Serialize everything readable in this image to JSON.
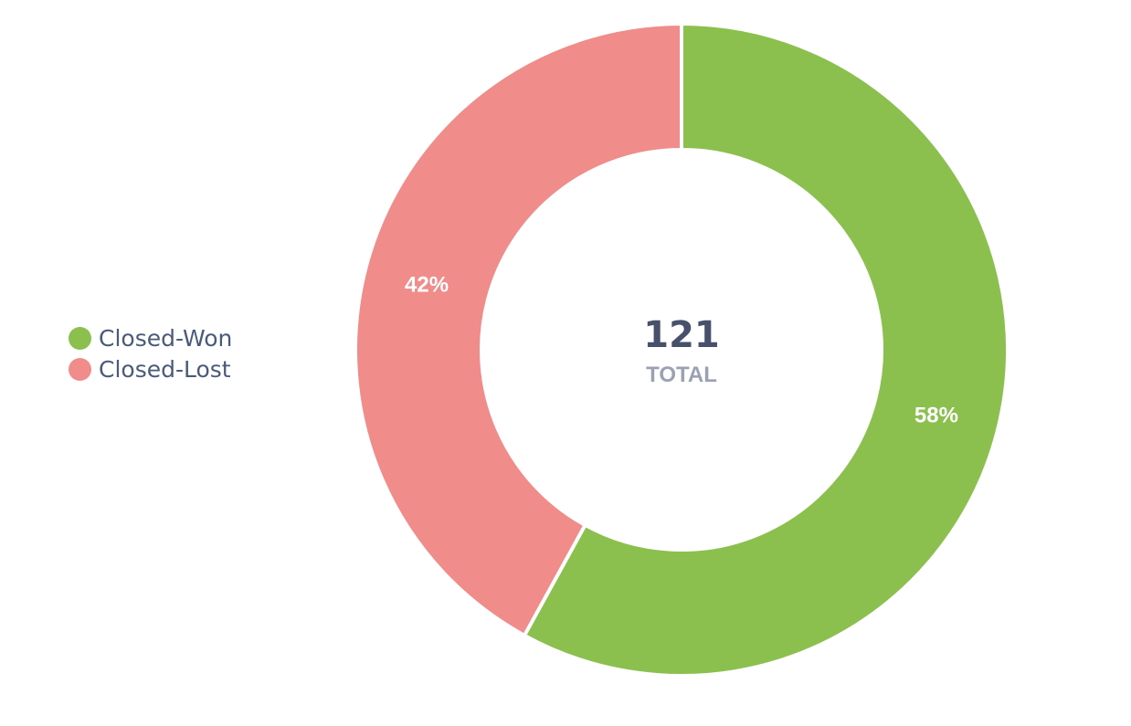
{
  "chart_data": {
    "type": "pie",
    "variant": "donut",
    "categories": [
      "Closed-Won",
      "Closed-Lost"
    ],
    "values": [
      58,
      42
    ],
    "value_labels": [
      "58%",
      "42%"
    ],
    "colors": [
      "#8bc04f",
      "#f08c8a"
    ],
    "legend_position": "left",
    "center": {
      "value": "121",
      "caption": "TOTAL"
    },
    "title": ""
  },
  "legend": {
    "items": [
      {
        "label": "Closed-Won",
        "color": "#8bc04f"
      },
      {
        "label": "Closed-Lost",
        "color": "#f08c8a"
      }
    ]
  }
}
